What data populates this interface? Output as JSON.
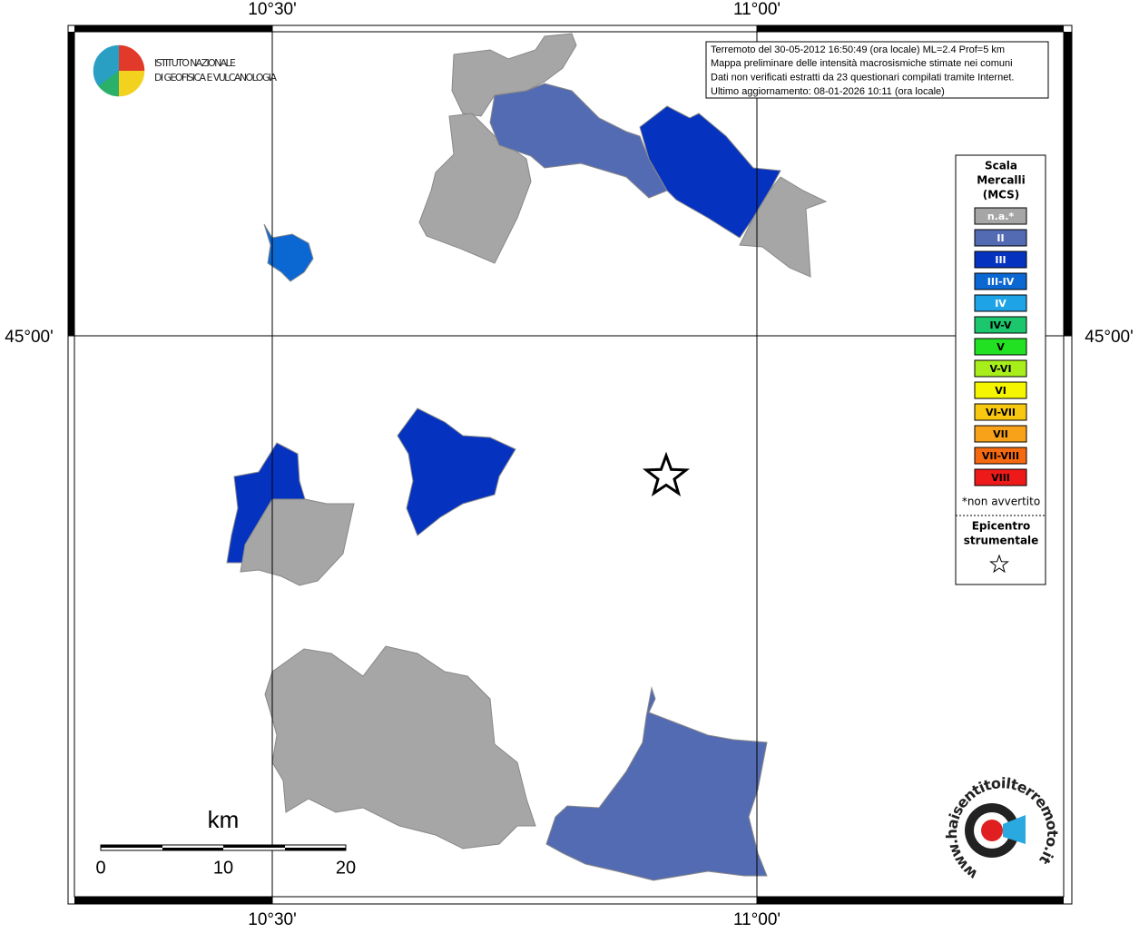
{
  "graticule": {
    "lon_labels": [
      "10°30'",
      "11°00'"
    ],
    "lat_labels": [
      "45°00'"
    ]
  },
  "logo": {
    "lines": [
      "ISTITUTO NAZIONALE",
      "DI GEOFISICA E VULCANOLOGIA"
    ]
  },
  "info": {
    "lines": [
      "Terremoto del 30-05-2012 16:50:49 (ora locale) ML=2.4 Prof=5 km",
      "Mappa preliminare delle intensità macrosismiche stimate nei comuni",
      "Dati non verificati estratti da 23 questionari compilati tramite Internet.",
      "Ultimo aggiornamento: 08-01-2026 10:11 (ora locale)"
    ]
  },
  "legend": {
    "title": [
      "Scala",
      "Mercalli",
      "(MCS)"
    ],
    "items": [
      {
        "name": "n.a.*",
        "color": "#a6a6a6"
      },
      {
        "name": "II",
        "color": "#536bb3"
      },
      {
        "name": "III",
        "color": "#0533c0"
      },
      {
        "name": "III-IV",
        "color": "#0b67d2"
      },
      {
        "name": "IV",
        "color": "#1ea3e6"
      },
      {
        "name": "IV-V",
        "color": "#1bc66c"
      },
      {
        "name": "V",
        "color": "#22e022"
      },
      {
        "name": "V-VI",
        "color": "#a8ee1a"
      },
      {
        "name": "VI",
        "color": "#f5f500"
      },
      {
        "name": "VI-VII",
        "color": "#f8c810"
      },
      {
        "name": "VII",
        "color": "#f8a21a"
      },
      {
        "name": "VII-VIII",
        "color": "#f56a10"
      },
      {
        "name": "VIII",
        "color": "#ee1a1a"
      }
    ],
    "note": "*non avvertito",
    "epicenter": [
      "Epicentro",
      "strumentale"
    ]
  },
  "scale_bar": {
    "unit": "km",
    "ticks": [
      0,
      10,
      20
    ]
  },
  "footer_logo": {
    "text": "www.haisentitoilterremoto.it"
  }
}
